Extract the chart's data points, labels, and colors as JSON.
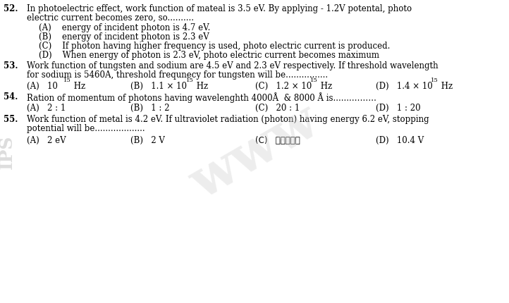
{
  "bg_color": "#ffffff",
  "text_color": "#000000",
  "font_size": 8.5,
  "q52_line1": "In photoelectric effect, work function of mateal is 3.5 eV. By applying - 1.2V potental, photo",
  "q52_line2": "electric current becomes zero, so..........",
  "q52_A": "(A)    energy of incident photon is 4.7 eV.",
  "q52_B": "(B)    energy of incident photon is 2.3 eV",
  "q52_C": "(C)    If photon having higher frequency is used, photo electric current is produced.",
  "q52_D": "(D)    When energy of photon is 2.3 eV, photo electric current becomes maximum",
  "q53_line1": "Work function of tungsten and sodium are 4.5 eV and 2.3 eV respectively. If threshold wavelength",
  "q53_line2": "for sodium is 5460A, threshold frequnecy for tungsten will be................",
  "q54_line1": "Ration of momentum of photons having wavelenghth 4000Å  & 8000 Å is.......………",
  "q54_A": "(A)   2 : 1",
  "q54_B": "(B)   1 : 2",
  "q54_C": "(C)   20 : 1",
  "q54_D": "(D)   1 : 20",
  "q55_line1": "Work function of metal is 4.2 eV. If ultraviolet radiation (photon) having energy 6.2 eV, stopping",
  "q55_line2": "potential will be...................",
  "q55_A": "(A)   2 eV",
  "q55_B": "(B)   2 V",
  "q55_C": "(C)   शून्य",
  "q55_D": "(D)   10.4 V",
  "watermark": "www",
  "sidebar": "IPS"
}
